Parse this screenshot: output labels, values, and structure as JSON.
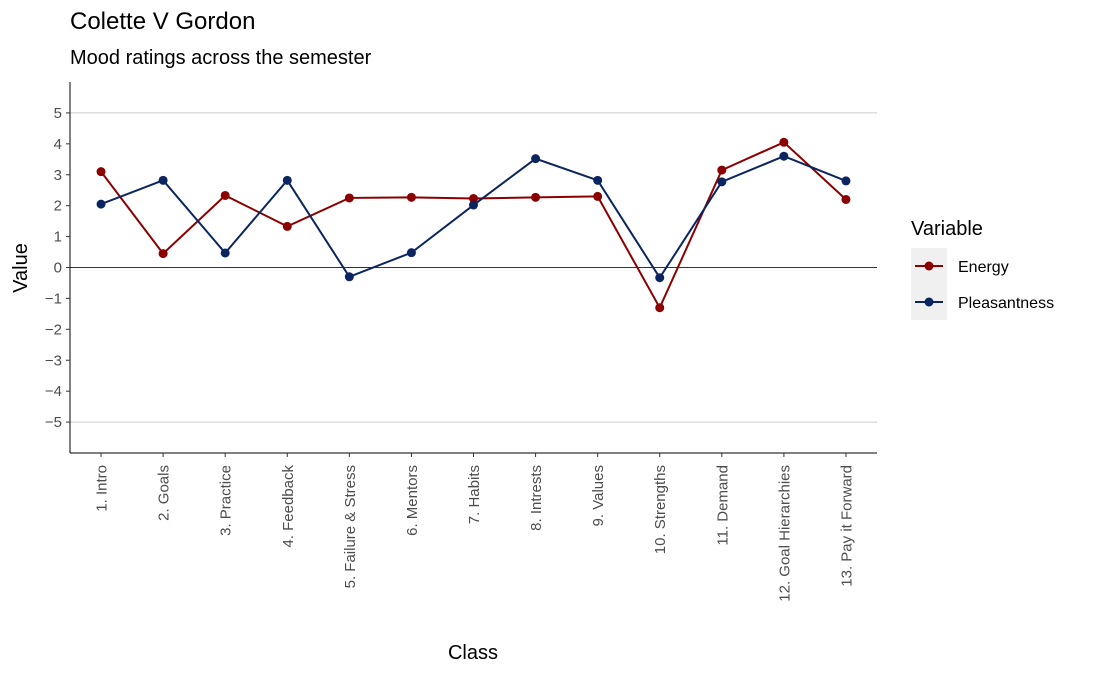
{
  "chart_data": {
    "type": "line",
    "title": "Colette V Gordon",
    "subtitle": "Mood ratings across the semester",
    "xlabel": "Class",
    "ylabel": "Value",
    "categories": [
      "1. Intro",
      "2. Goals",
      "3. Practice",
      "4. Feedback",
      "5. Failure & Stress",
      "6. Mentors",
      "7. Habits",
      "8. Intrests",
      "9. Values",
      "10. Strengths",
      "11. Demand",
      "12. Goal Hierarchies",
      "13. Pay it Forward"
    ],
    "yticks": [
      "5",
      "4",
      "3",
      "2",
      "1",
      "0",
      "−1",
      "−2",
      "−3",
      "−4",
      "−5"
    ],
    "ylim": [
      -6.0,
      6.0
    ],
    "grid_lines_at": [
      5,
      -5
    ],
    "zero_line": true,
    "legend": {
      "title": "Variable",
      "position": "right"
    },
    "series": [
      {
        "name": "Energy",
        "color": "#8b0000",
        "values": [
          3.1,
          0.45,
          2.33,
          1.33,
          2.25,
          2.27,
          2.23,
          2.27,
          2.3,
          -1.3,
          3.15,
          4.05,
          2.2
        ]
      },
      {
        "name": "Pleasantness",
        "color": "#0b2560",
        "values": [
          2.05,
          2.82,
          0.47,
          2.82,
          -0.3,
          0.48,
          2.02,
          3.52,
          2.82,
          -0.33,
          2.77,
          3.6,
          2.8
        ]
      }
    ]
  }
}
